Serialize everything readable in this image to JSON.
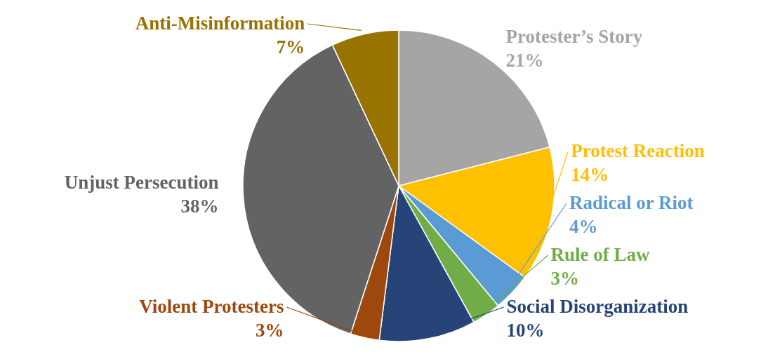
{
  "chart_data": {
    "type": "pie",
    "categories": [
      "Protester’s Story",
      "Protest Reaction",
      "Radical or Riot",
      "Rule of Law",
      "Social Disorganization",
      "Violent Protesters",
      "Unjust Persecution",
      "Anti-Misinformation"
    ],
    "values": [
      21,
      14,
      4,
      3,
      10,
      3,
      38,
      7
    ],
    "value_labels": [
      "21%",
      "14%",
      "4%",
      "3%",
      "10%",
      "3%",
      "38%",
      "7%"
    ],
    "colors": [
      "#a5a5a5",
      "#ffc000",
      "#5b9bd5",
      "#70ad47",
      "#264478",
      "#9e480e",
      "#636363",
      "#997300"
    ],
    "legend": false
  }
}
